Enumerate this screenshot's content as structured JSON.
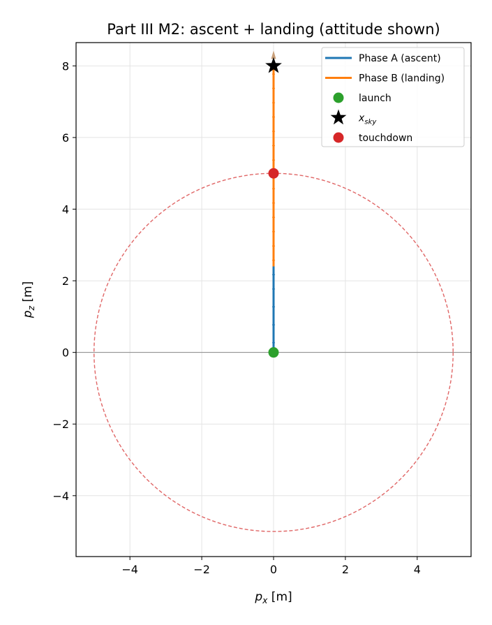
{
  "chart_data": {
    "type": "scatter",
    "title": "Part III M2: ascent + landing (attitude shown)",
    "xlabel": {
      "main": "p",
      "sub": "x",
      "unit": " [m]"
    },
    "ylabel": {
      "main": "p",
      "sub": "z",
      "unit": " [m]"
    },
    "xlim": [
      -5.5,
      5.5
    ],
    "ylim": [
      -5.7,
      8.65
    ],
    "xticks": [
      -4,
      -2,
      0,
      2,
      4
    ],
    "yticks": [
      -4,
      -2,
      0,
      2,
      4,
      6,
      8
    ],
    "grid": true,
    "legend_position": "top-right",
    "series": [
      {
        "name": "Phase A (ascent)",
        "color": "#1f77b4",
        "x": [
          0,
          0
        ],
        "y": [
          0,
          2.4
        ]
      },
      {
        "name": "Phase B (landing)",
        "color": "#ff7f0e",
        "x": [
          0,
          0
        ],
        "y": [
          2.4,
          8.0
        ]
      }
    ],
    "attitude_arrows": {
      "color_A": "#1f77b4",
      "color_B": "#ff7f0e",
      "tip_color": "#c9a07a",
      "phase_A_y": [
        0.3,
        0.8,
        1.3,
        1.8,
        2.2
      ],
      "phase_B_y": [
        2.6,
        3.0,
        3.4,
        3.8,
        4.2,
        4.6,
        5.0,
        5.4,
        5.8,
        6.2,
        6.6,
        7.0,
        7.4,
        7.8
      ]
    },
    "markers": [
      {
        "name": "launch",
        "x": 0,
        "y": 0,
        "shape": "circle",
        "color": "#2ca02c"
      },
      {
        "name": "x_sky",
        "label_main": "x",
        "label_sub": "sky",
        "x": 0,
        "y": 8.0,
        "shape": "star",
        "color": "#000000"
      },
      {
        "name": "touchdown",
        "x": 0,
        "y": 5.0,
        "shape": "circle",
        "color": "#d62728"
      }
    ],
    "boundary_circle": {
      "center": [
        0,
        0
      ],
      "radius": 5,
      "color": "#e06666",
      "style": "dashed"
    },
    "horizontal_reference_line": {
      "y": 0,
      "color": "#888888"
    }
  }
}
